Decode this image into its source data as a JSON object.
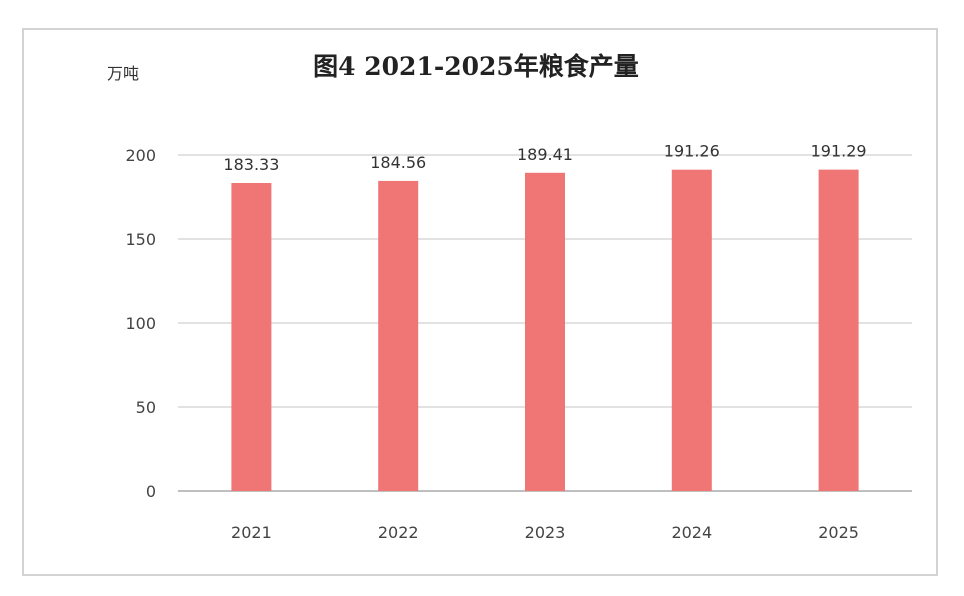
{
  "chart_data": {
    "type": "bar",
    "title": "图4 2021-2025年粮食产量",
    "unit_label": "万吨",
    "categories": [
      "2021",
      "2022",
      "2023",
      "2024",
      "2025"
    ],
    "values": [
      183.33,
      184.56,
      189.41,
      191.26,
      191.29
    ],
    "value_labels": [
      "183.33",
      "184.56",
      "189.41",
      "191.26",
      "191.29"
    ],
    "yticks": [
      "0",
      "50",
      "100",
      "150",
      "200"
    ],
    "ylim": [
      0,
      200
    ],
    "grid": true,
    "legend": "none",
    "bar_color": "#f07575"
  }
}
